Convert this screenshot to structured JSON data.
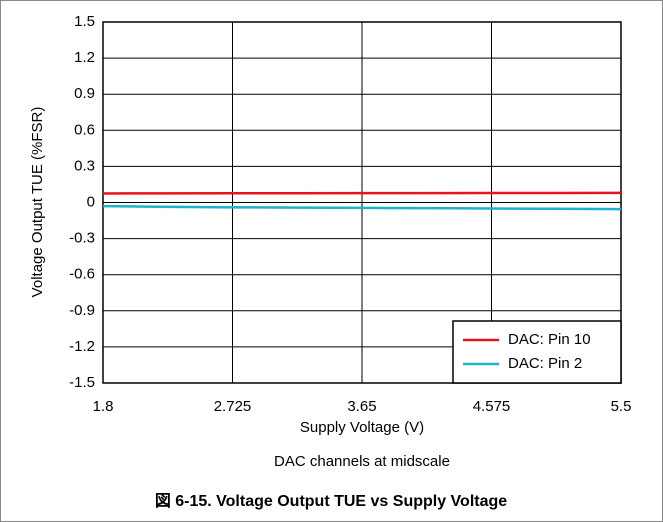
{
  "chart_data": {
    "type": "line",
    "xlabel": "Supply Voltage (V)",
    "ylabel": "Voltage Output TUE (%FSR)",
    "subtitle": "DAC channels at midscale",
    "caption": "図 6-15. Voltage Output TUE vs Supply Voltage",
    "x": [
      1.8,
      2.2,
      2.725,
      3.2,
      3.65,
      4.1,
      4.575,
      5.0,
      5.5
    ],
    "series": [
      {
        "name": "DAC: Pin 10",
        "color": "#e8141b",
        "values": [
          0.075,
          0.076,
          0.077,
          0.077,
          0.078,
          0.078,
          0.079,
          0.079,
          0.08
        ]
      },
      {
        "name": "DAC: Pin 2",
        "color": "#1fb2c8",
        "values": [
          -0.03,
          -0.035,
          -0.04,
          -0.043,
          -0.045,
          -0.047,
          -0.05,
          -0.052,
          -0.055
        ]
      }
    ],
    "xlim": [
      1.8,
      5.5
    ],
    "xticks": [
      1.8,
      2.725,
      3.65,
      4.575,
      5.5
    ],
    "ylim": [
      -1.5,
      1.5
    ],
    "yticks": [
      1.5,
      1.2,
      0.9,
      0.6,
      0.3,
      0,
      -0.3,
      -0.6,
      -0.9,
      -1.2,
      -1.5
    ],
    "grid": true,
    "legend": "lower right"
  }
}
